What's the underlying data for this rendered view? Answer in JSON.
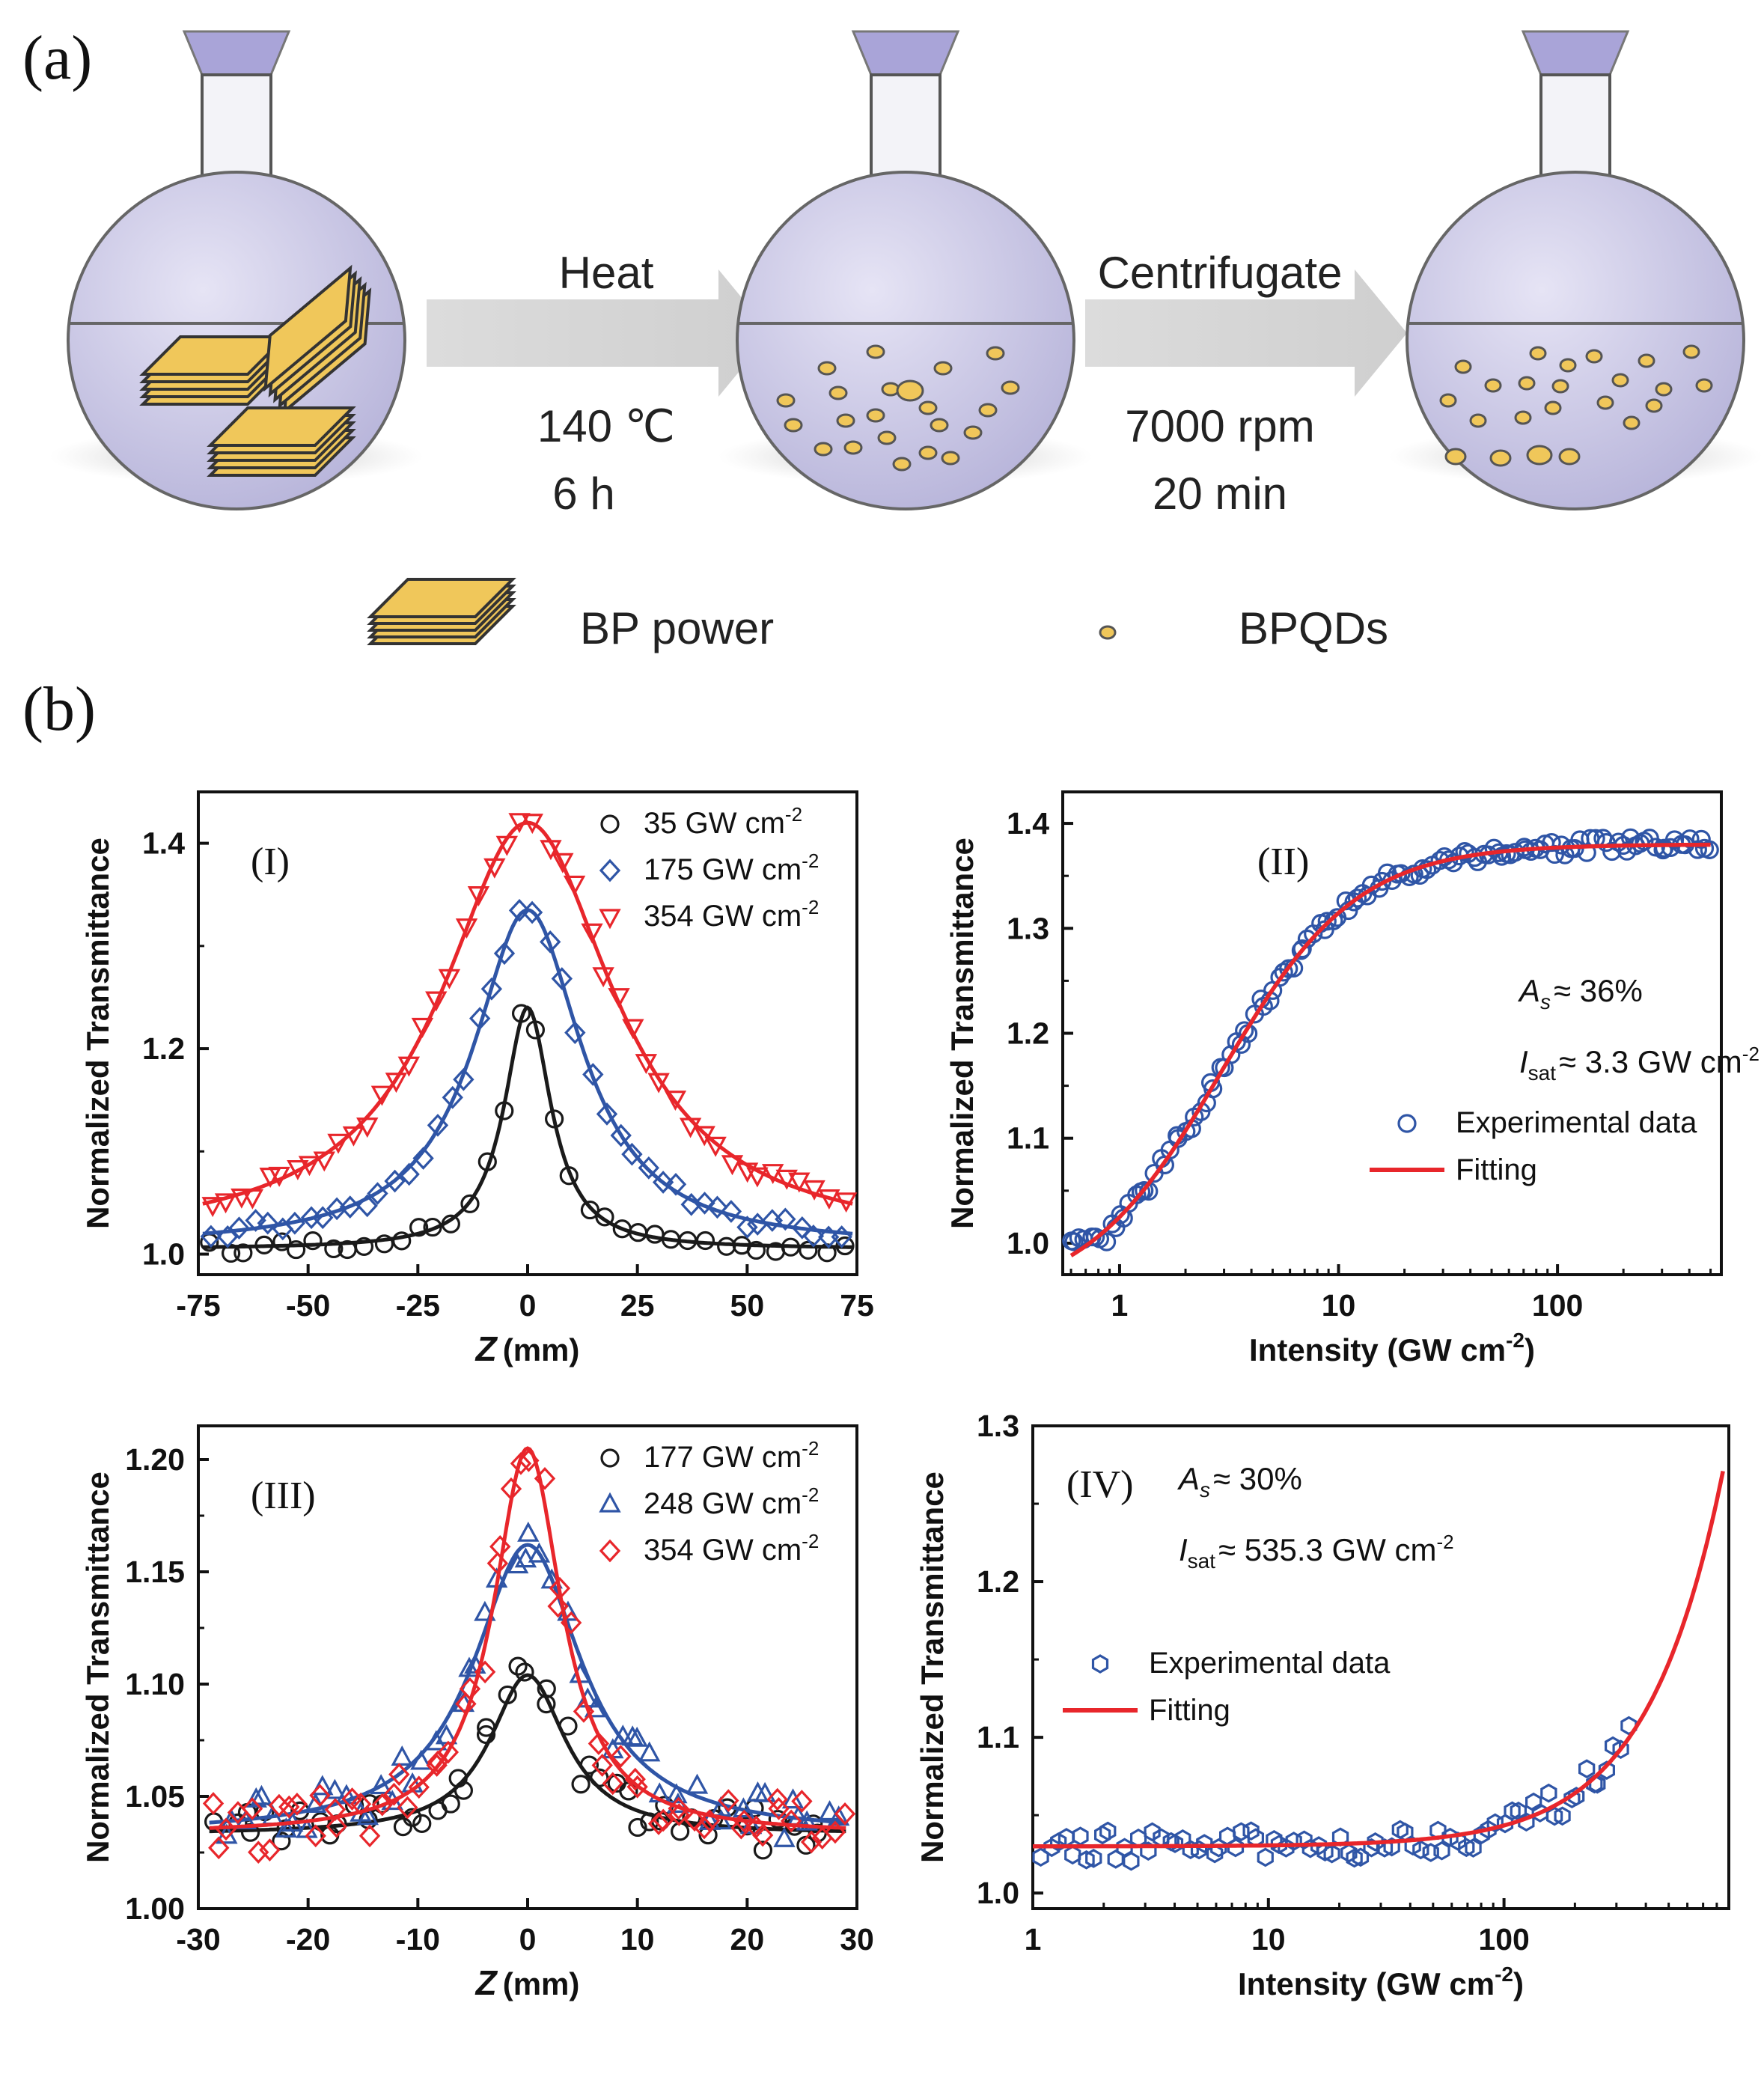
{
  "panel_a": {
    "label": "(a)",
    "step1": {
      "name": "Heat",
      "temp": "140 ℃",
      "time": "6 h"
    },
    "step2": {
      "name": "Centrifugate",
      "speed": "7000 rpm",
      "time": "20 min"
    },
    "legend": {
      "bp": "BP power",
      "qd": "BPQDs"
    }
  },
  "panel_b": {
    "label": "(b)"
  },
  "colors": {
    "black": "#1a1a1a",
    "blue": "#2f55a6",
    "red": "#e8262b",
    "flask": "#cfcdea",
    "flake": "#f0c75a"
  },
  "chart_data": [
    {
      "id": "I",
      "type": "scatter",
      "panel_label": "(I)",
      "xlabel": "Z",
      "xlabel_unit": "(mm)",
      "ylabel": "Normalized Transmittance",
      "xlim": [
        -75,
        75
      ],
      "ylim": [
        0.98,
        1.45
      ],
      "xticks": [
        -75,
        -50,
        -25,
        0,
        25,
        50,
        75
      ],
      "xtick_labels": [
        "-75",
        "-50",
        "-25",
        "0",
        "25",
        "50",
        "75"
      ],
      "yticks": [
        1.0,
        1.2,
        1.4
      ],
      "ytick_labels": [
        "1.0",
        "1.2",
        "1.4"
      ],
      "legend_position": "top-right",
      "series": [
        {
          "name": "35 GW cm",
          "sup": "-2",
          "marker": "circle",
          "color": "#1a1a1a",
          "peak": 1.24,
          "width": 6.5,
          "base": 1.005,
          "x_range": [
            -72,
            72
          ],
          "n": 38
        },
        {
          "name": "175 GW cm",
          "sup": "-2",
          "marker": "diamond",
          "color": "#2f55a6",
          "peak": 1.335,
          "width": 15,
          "base": 1.007,
          "x_range": [
            -72,
            72
          ],
          "n": 46
        },
        {
          "name": "354 GW cm",
          "sup": "-2",
          "marker": "triangle-down",
          "color": "#e8262b",
          "peak": 1.42,
          "width": 24,
          "base": 1.01,
          "x_range": [
            -72,
            72
          ],
          "n": 46
        }
      ]
    },
    {
      "id": "II",
      "type": "scatter",
      "panel_label": "(II)",
      "xscale": "log",
      "xlabel": "Intensity (GW cm",
      "xlabel_sup": "-2",
      "xlabel_tail": ")",
      "ylabel": "Normalized Transmittance",
      "xlim": [
        0.55,
        560
      ],
      "ylim": [
        0.97,
        1.43
      ],
      "xticks": [
        1,
        10,
        100
      ],
      "xtick_labels": [
        "1",
        "10",
        "100"
      ],
      "yticks": [
        1.0,
        1.1,
        1.2,
        1.3,
        1.4
      ],
      "ytick_labels": [
        "1.0",
        "1.1",
        "1.2",
        "1.3",
        "1.4"
      ],
      "annotation": {
        "as_label": "A",
        "as_sub": "s",
        "as_value": "≈ 36%",
        "isat_label": "I",
        "isat_sub": "sat",
        "isat_value": "≈ 3.3 GW cm",
        "isat_sup": "-2"
      },
      "fit": {
        "x_min": 0.6,
        "x_max": 500,
        "low": 0.945,
        "high": 1.38,
        "center": 2.9,
        "steep": 1.4
      },
      "data": {
        "x_min": 0.6,
        "x_max": 500,
        "n": 130
      },
      "legend": {
        "data": "Experimental data",
        "fit": "Fitting"
      },
      "legend_position": "right-middle"
    },
    {
      "id": "III",
      "type": "scatter",
      "panel_label": "(III)",
      "xlabel": "Z",
      "xlabel_unit": "(mm)",
      "ylabel": "Normalized Transmittance",
      "xlim": [
        -30,
        30
      ],
      "ylim": [
        1.0,
        1.215
      ],
      "xticks": [
        -30,
        -20,
        -10,
        0,
        10,
        20,
        30
      ],
      "xtick_labels": [
        "-30",
        "-20",
        "-10",
        "0",
        "10",
        "20",
        "30"
      ],
      "yticks": [
        1.0,
        1.05,
        1.1,
        1.15,
        1.2
      ],
      "ytick_labels": [
        "1.00",
        "1.05",
        "1.10",
        "1.15",
        "1.20"
      ],
      "legend_position": "top-right",
      "series": [
        {
          "name": "177 GW cm",
          "sup": "-2",
          "marker": "circle",
          "color": "#1a1a1a",
          "peak": 1.104,
          "width": 4.2,
          "base": 1.033,
          "x_range": [
            -28,
            27
          ],
          "n": 52
        },
        {
          "name": "248 GW cm",
          "sup": "-2",
          "marker": "triangle-up",
          "color": "#2f55a6",
          "peak": 1.162,
          "width": 6.0,
          "base": 1.033,
          "x_range": [
            -28,
            28
          ],
          "n": 58
        },
        {
          "name": "354 GW cm",
          "sup": "-2",
          "marker": "diamond",
          "color": "#e8262b",
          "peak": 1.205,
          "width": 3.8,
          "base": 1.033,
          "x_range": [
            -29,
            29
          ],
          "n": 64
        }
      ]
    },
    {
      "id": "IV",
      "type": "scatter",
      "panel_label": "(IV)",
      "xscale": "log",
      "xlabel": "Intensity (GW cm",
      "xlabel_sup": "-2",
      "xlabel_tail": ")",
      "ylabel": "Normalized Transmittance",
      "xlim": [
        1,
        900
      ],
      "ylim": [
        0.99,
        1.3
      ],
      "xticks": [
        1,
        10,
        100
      ],
      "xtick_labels": [
        "1",
        "10",
        "100"
      ],
      "yticks": [
        1.0,
        1.1,
        1.2,
        1.3
      ],
      "ytick_labels": [
        "1.0",
        "1.1",
        "1.2",
        "1.3"
      ],
      "annotation": {
        "as_label": "A",
        "as_sub": "s",
        "as_value": "≈ 30%",
        "isat_label": "I",
        "isat_sub": "sat",
        "isat_value": "≈ 535.3 GW cm",
        "isat_sup": "-2"
      },
      "fit": {
        "x_min": 1.0,
        "x_max": 850,
        "base": 1.03,
        "scale": 0.3,
        "power": 1.35
      },
      "data": {
        "x_min": 1.1,
        "x_max": 340,
        "n": 80
      },
      "legend": {
        "data": "Experimental data",
        "fit": "Fitting"
      },
      "legend_position": "left-middle"
    }
  ]
}
